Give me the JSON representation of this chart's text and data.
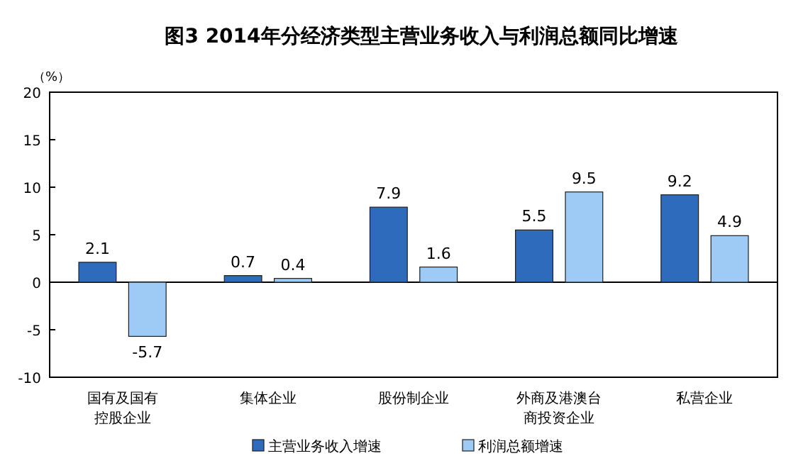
{
  "chart_data": {
    "type": "bar",
    "title": "图3  2014年分经济类型主营业务收入与利润总额同比增速",
    "ylabel": "（%）",
    "categories": [
      "国有及国有控股企业",
      "集体企业",
      "股份制企业",
      "外商及港澳台商投资企业",
      "私营企业"
    ],
    "series": [
      {
        "name": "主营业务收入增速",
        "color": "#2e6bbd",
        "values": [
          2.1,
          0.7,
          7.9,
          5.5,
          9.2
        ]
      },
      {
        "name": "利润总额增速",
        "color": "#9dcbf5",
        "values": [
          -5.7,
          0.4,
          1.6,
          9.5,
          4.9
        ]
      }
    ],
    "ylim": [
      -10,
      20
    ],
    "yticks": [
      -10,
      -5,
      0,
      5,
      10,
      15,
      20
    ],
    "legend": "bottom",
    "data_labels": true
  }
}
